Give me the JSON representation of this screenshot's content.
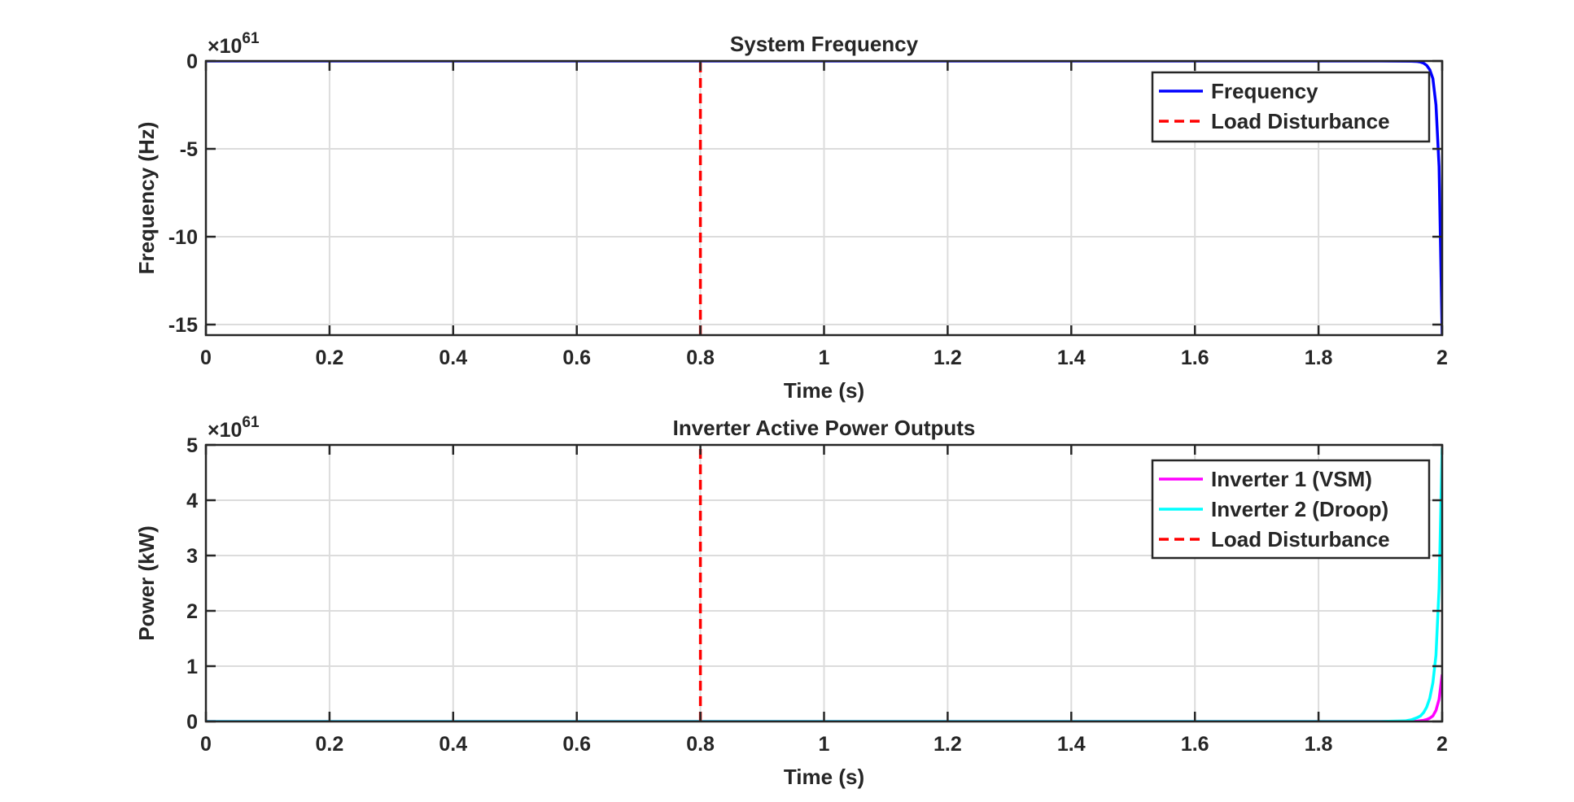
{
  "chart_data": [
    {
      "type": "line",
      "title": "System Frequency",
      "xlabel": "Time (s)",
      "ylabel": "Frequency (Hz)",
      "exponent_label": "×10",
      "exponent_power": "61",
      "xlim": [
        0,
        2
      ],
      "ylim": [
        -15.6,
        0
      ],
      "xticks": [
        0,
        0.2,
        0.4,
        0.6,
        0.8,
        1,
        1.2,
        1.4,
        1.6,
        1.8,
        2
      ],
      "xtick_labels": [
        "0",
        "0.2",
        "0.4",
        "0.6",
        "0.8",
        "1",
        "1.2",
        "1.4",
        "1.6",
        "1.8",
        "2"
      ],
      "yticks": [
        0,
        -5,
        -10,
        -15
      ],
      "ytick_labels": [
        "0",
        "-5",
        "-10",
        "-15"
      ],
      "grid": true,
      "legend_position": "top-right",
      "series": [
        {
          "name": "Frequency",
          "color": "#0000ff",
          "style": "solid",
          "x": [
            0,
            0.5,
            1.0,
            1.5,
            1.9,
            1.95,
            1.96,
            1.965,
            1.97,
            1.975,
            1.98,
            1.985,
            1.99,
            1.995,
            2.0
          ],
          "y": [
            0,
            0,
            0,
            0,
            0,
            -0.01,
            -0.03,
            -0.06,
            -0.12,
            -0.25,
            -0.5,
            -1.0,
            -2.5,
            -6.0,
            -15.6
          ]
        },
        {
          "name": "Load Disturbance",
          "color": "#ff0000",
          "style": "dashed",
          "x": [
            0.8,
            0.8
          ],
          "y": [
            -15.6,
            0
          ]
        }
      ]
    },
    {
      "type": "line",
      "title": "Inverter Active Power Outputs",
      "xlabel": "Time (s)",
      "ylabel": "Power (kW)",
      "exponent_label": "×10",
      "exponent_power": "61",
      "xlim": [
        0,
        2
      ],
      "ylim": [
        0,
        5
      ],
      "xticks": [
        0,
        0.2,
        0.4,
        0.6,
        0.8,
        1,
        1.2,
        1.4,
        1.6,
        1.8,
        2
      ],
      "xtick_labels": [
        "0",
        "0.2",
        "0.4",
        "0.6",
        "0.8",
        "1",
        "1.2",
        "1.4",
        "1.6",
        "1.8",
        "2"
      ],
      "yticks": [
        0,
        1,
        2,
        3,
        4,
        5
      ],
      "ytick_labels": [
        "0",
        "1",
        "2",
        "3",
        "4",
        "5"
      ],
      "grid": true,
      "legend_position": "top-right",
      "series": [
        {
          "name": "Inverter 1 (VSM)",
          "color": "#ff00ff",
          "style": "solid",
          "x": [
            0,
            0.5,
            1.0,
            1.5,
            1.9,
            1.95,
            1.96,
            1.97,
            1.975,
            1.98,
            1.985,
            1.99,
            1.995,
            2.0
          ],
          "y": [
            0,
            0,
            0,
            0,
            0,
            0.003,
            0.008,
            0.02,
            0.035,
            0.06,
            0.1,
            0.2,
            0.4,
            0.85
          ]
        },
        {
          "name": "Inverter 2 (Droop)",
          "color": "#00ffff",
          "style": "solid",
          "x": [
            0,
            0.5,
            1.0,
            1.5,
            1.9,
            1.94,
            1.95,
            1.96,
            1.965,
            1.97,
            1.975,
            1.98,
            1.985,
            1.99,
            1.995,
            2.0
          ],
          "y": [
            0,
            0,
            0,
            0,
            0,
            0.01,
            0.03,
            0.07,
            0.1,
            0.16,
            0.26,
            0.42,
            0.7,
            1.2,
            2.4,
            4.95
          ]
        },
        {
          "name": "Load Disturbance",
          "color": "#ff0000",
          "style": "dashed",
          "x": [
            0.8,
            0.8
          ],
          "y": [
            0,
            5
          ]
        }
      ]
    }
  ]
}
